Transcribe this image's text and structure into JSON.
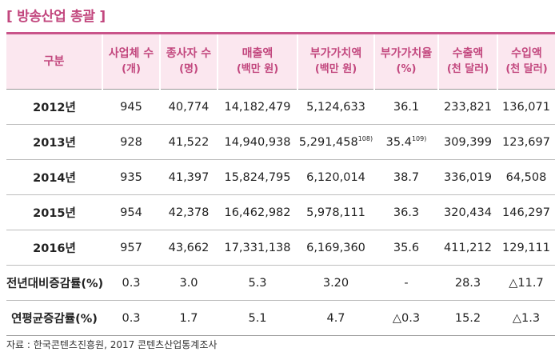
{
  "title": "[ 방송산업 총괄 ]",
  "headers": [
    {
      "main": "구분",
      "sub": ""
    },
    {
      "main": "사업체 수",
      "sub": "(개)"
    },
    {
      "main": "종사자 수",
      "sub": "(명)"
    },
    {
      "main": "매출액",
      "sub": "(백만 원)"
    },
    {
      "main": "부가가치액",
      "sub": "(백만 원)"
    },
    {
      "main": "부가가치율",
      "sub": "(%)"
    },
    {
      "main": "수출액",
      "sub": "(천 달러)"
    },
    {
      "main": "수입액",
      "sub": "(천 달러)"
    }
  ],
  "rows": [
    {
      "label": "2012년",
      "cells": [
        "945",
        "40,774",
        "14,182,479",
        "5,124,633",
        "36.1",
        "233,821",
        "136,071"
      ]
    },
    {
      "label": "2013년",
      "cells": [
        "928",
        "41,522",
        "14,940,938",
        "5,291,458",
        "35.4",
        "309,399",
        "123,697"
      ]
    },
    {
      "label": "2014년",
      "cells": [
        "935",
        "41,397",
        "15,824,795",
        "6,120,014",
        "38.7",
        "336,019",
        "64,508"
      ]
    },
    {
      "label": "2015년",
      "cells": [
        "954",
        "42,378",
        "16,462,982",
        "5,978,111",
        "36.3",
        "320,434",
        "146,297"
      ]
    },
    {
      "label": "2016년",
      "cells": [
        "957",
        "43,662",
        "17,331,138",
        "6,169,360",
        "35.6",
        "411,212",
        "129,111"
      ]
    },
    {
      "label": "전년대비증감률(%)",
      "cells": [
        "0.3",
        "3.0",
        "5.3",
        "3.20",
        "-",
        "28.3",
        "△11.7"
      ]
    },
    {
      "label": "연평균증감률(%)",
      "cells": [
        "0.3",
        "1.7",
        "5.1",
        "4.7",
        "△0.3",
        "15.2",
        "△1.3"
      ]
    }
  ],
  "footnotes": {
    "r1c3": "108)",
    "r1c4": "109)"
  },
  "source": "자료 : 한국콘텐츠진흥원, 2017 콘텐츠산업통계조사"
}
